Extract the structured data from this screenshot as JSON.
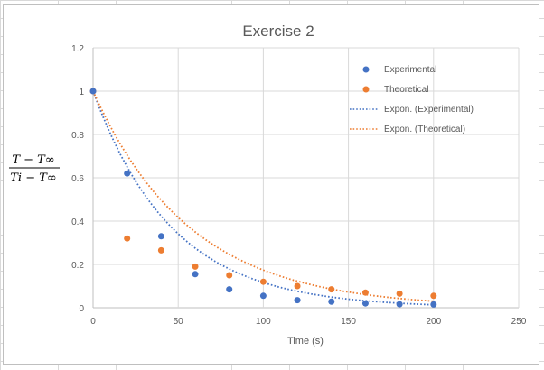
{
  "chart_data": {
    "type": "scatter",
    "title": "Exercise 2",
    "xlabel": "Time (s)",
    "ylabel_numerator": "T − T∞",
    "ylabel_denominator": "Ti − T∞",
    "xlim": [
      0,
      250
    ],
    "ylim": [
      0,
      1.2
    ],
    "x_ticks": [
      0,
      50,
      100,
      150,
      200,
      250
    ],
    "y_ticks": [
      0,
      0.2,
      0.4,
      0.6,
      0.8,
      1,
      1.2
    ],
    "x_tick_labels": [
      "0",
      "50",
      "100",
      "150",
      "200",
      "250"
    ],
    "y_tick_labels": [
      "0",
      "0.2",
      "0.4",
      "0.6",
      "0.8",
      "1",
      "1.2"
    ],
    "grid": true,
    "legend_position": "top-right",
    "series": [
      {
        "name": "Experimental",
        "color": "#4472c4",
        "x": [
          0,
          20,
          40,
          60,
          80,
          100,
          120,
          140,
          160,
          180,
          200
        ],
        "y": [
          1.0,
          0.62,
          0.33,
          0.155,
          0.085,
          0.055,
          0.035,
          0.028,
          0.02,
          0.016,
          0.015
        ]
      },
      {
        "name": "Theoretical",
        "color": "#ed7d31",
        "x": [
          0,
          20,
          40,
          60,
          80,
          100,
          120,
          140,
          160,
          180,
          200
        ],
        "y": [
          1.0,
          0.32,
          0.265,
          0.19,
          0.15,
          0.12,
          0.1,
          0.085,
          0.07,
          0.065,
          0.055
        ]
      }
    ],
    "trendlines": [
      {
        "name": "Expon. (Experimental)",
        "color": "#4472c4",
        "type": "exponential",
        "a": 1.0,
        "b": -0.0215,
        "x_range": [
          0,
          200
        ]
      },
      {
        "name": "Expon. (Theoretical)",
        "color": "#ed7d31",
        "type": "exponential",
        "a": 1.0,
        "b": -0.0175,
        "x_range": [
          0,
          200
        ]
      }
    ]
  }
}
